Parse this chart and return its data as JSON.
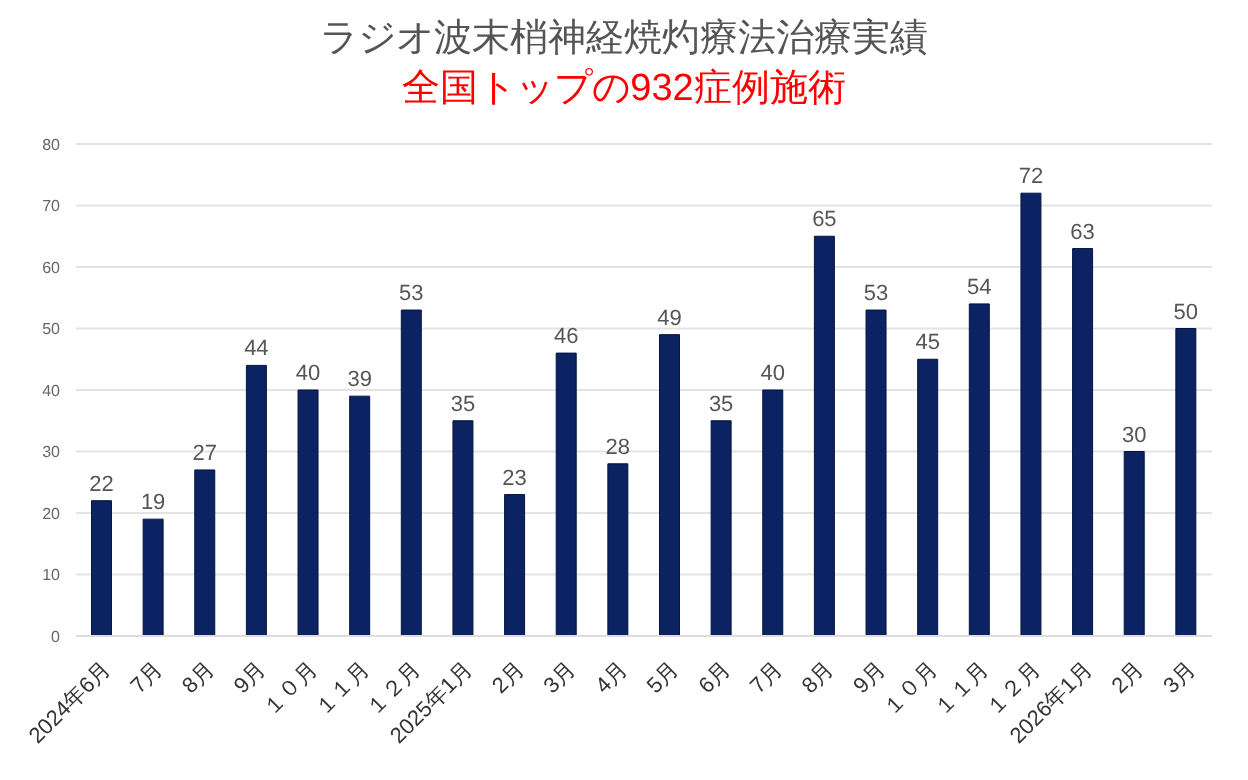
{
  "chart_data": {
    "type": "bar",
    "title": "ラジオ波末梢神経焼灼療法治療実績",
    "subtitle": "全国トップの932症例施術",
    "categories": [
      "2024年6月",
      "7月",
      "8月",
      "9月",
      "１０月",
      "１１月",
      "１２月",
      "2025年1月",
      "2月",
      "3月",
      "4月",
      "5月",
      "6月",
      "7月",
      "8月",
      "9月",
      "１０月",
      "１１月",
      "１２月",
      "2026年1月",
      "2月",
      "3月"
    ],
    "values": [
      22,
      19,
      27,
      44,
      40,
      39,
      53,
      35,
      23,
      46,
      28,
      49,
      35,
      40,
      65,
      53,
      45,
      54,
      72,
      63,
      30,
      50
    ],
    "color": "#0b2263",
    "ylim": [
      0,
      80
    ],
    "yticks": [
      0,
      10,
      20,
      30,
      40,
      50,
      60,
      70,
      80
    ],
    "grid": "y",
    "data_labels": true
  }
}
